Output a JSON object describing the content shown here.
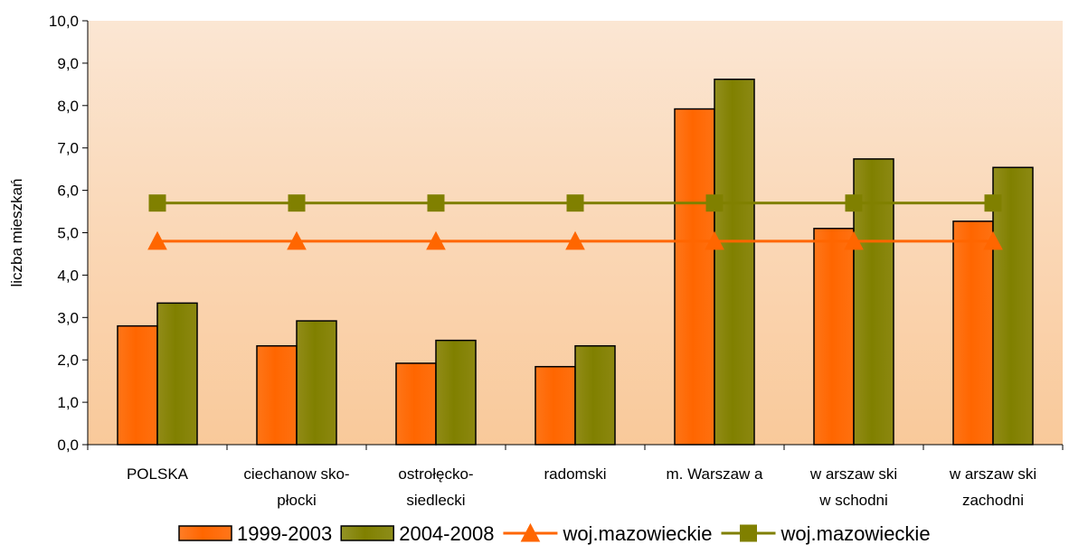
{
  "chart_data": {
    "type": "bar",
    "ylabel": "liczba mieszkań",
    "ylim": [
      0,
      10
    ],
    "ytick_step": 1,
    "ytick_labels": [
      "0,0",
      "1,0",
      "2,0",
      "3,0",
      "4,0",
      "5,0",
      "6,0",
      "7,0",
      "8,0",
      "9,0",
      "10,0"
    ],
    "grid": false,
    "legend_position": "bottom",
    "categories": [
      [
        "POLSKA"
      ],
      [
        "ciechanow sko-",
        "płocki"
      ],
      [
        "ostrołęcko-",
        "siedlecki"
      ],
      [
        "radomski"
      ],
      [
        "m. Warszaw a"
      ],
      [
        "w arszaw ski",
        "w schodni"
      ],
      [
        "w arszaw ski",
        "zachodni"
      ]
    ],
    "series": [
      {
        "name": "1999-2003",
        "kind": "bar",
        "color": "#ff6600",
        "values": [
          2.8,
          2.33,
          1.92,
          1.84,
          7.92,
          5.1,
          5.27
        ]
      },
      {
        "name": "2004-2008",
        "kind": "bar",
        "color": "#808000",
        "values": [
          3.34,
          2.92,
          2.46,
          2.33,
          8.62,
          6.74,
          6.54
        ]
      },
      {
        "name": "woj.mazowieckie",
        "kind": "line",
        "marker": "triangle",
        "color": "#ff6600",
        "values": [
          4.8,
          4.8,
          4.8,
          4.8,
          4.8,
          4.8,
          4.8
        ]
      },
      {
        "name": "woj.mazowieckie",
        "kind": "line",
        "marker": "square",
        "color": "#808000",
        "values": [
          5.7,
          5.7,
          5.7,
          5.7,
          5.7,
          5.7,
          5.7
        ]
      }
    ],
    "background_gradient": [
      "#fbe6d3",
      "#f9c99a"
    ]
  }
}
